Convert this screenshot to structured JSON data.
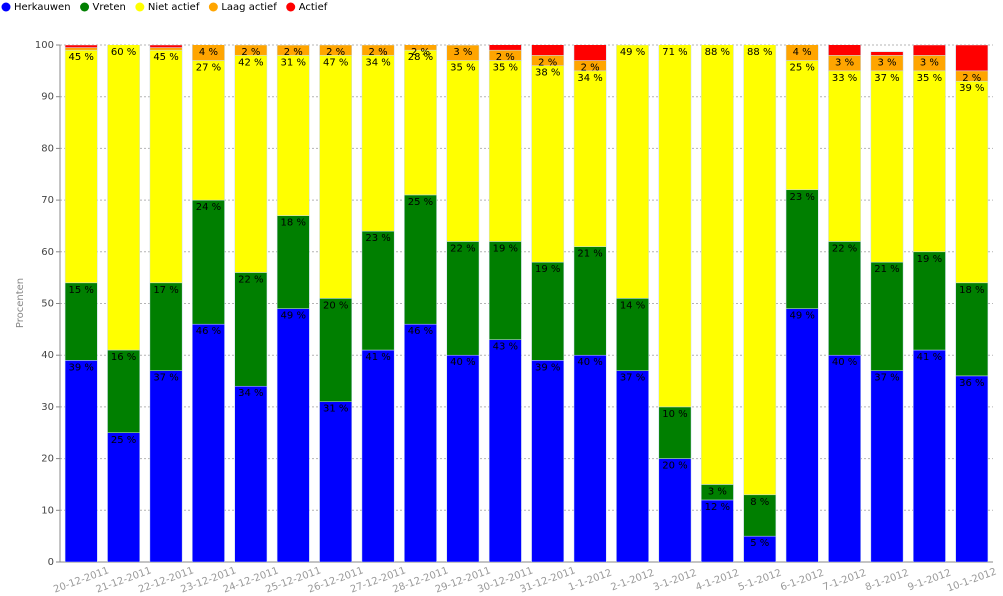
{
  "chart_data": {
    "type": "stacked-bar",
    "y_label": "Procenten",
    "categories": [
      "20-12-2011",
      "21-12-2011",
      "22-12-2011",
      "23-12-2011",
      "24-12-2011",
      "25-12-2011",
      "26-12-2011",
      "27-12-2011",
      "28-12-2011",
      "29-12-2011",
      "30-12-2011",
      "31-12-2011",
      "1-1-2012",
      "2-1-2012",
      "3-1-2012",
      "4-1-2012",
      "5-1-2012",
      "6-1-2012",
      "7-1-2012",
      "8-1-2012",
      "9-1-2012",
      "10-1-2012"
    ],
    "series": [
      {
        "name": "Herkauwen",
        "color": "#0000ff",
        "values": [
          39,
          25,
          37,
          46,
          34,
          49,
          31,
          41,
          46,
          40,
          43,
          39,
          40,
          37,
          20,
          12,
          5,
          49,
          40,
          37,
          41,
          36
        ],
        "value_labels": [
          "39 %",
          "25 %",
          "37 %",
          "46 %",
          "34 %",
          "49 %",
          "31 %",
          "41 %",
          "46 %",
          "40 %",
          "43 %",
          "39 %",
          "40 %",
          "37 %",
          "20 %",
          "12 %",
          "5 %",
          "49 %",
          "40 %",
          "37 %",
          "41 %",
          "36 %"
        ]
      },
      {
        "name": "Vreten",
        "color": "#007f00",
        "values": [
          15,
          16,
          17,
          24,
          22,
          18,
          20,
          23,
          25,
          22,
          19,
          19,
          21,
          14,
          10,
          3,
          8,
          23,
          22,
          21,
          19,
          18
        ],
        "value_labels": [
          "15 %",
          "16 %",
          "17 %",
          "24 %",
          "22 %",
          "18 %",
          "20 %",
          "23 %",
          "25 %",
          "22 %",
          "19 %",
          "19 %",
          "21 %",
          "14 %",
          "10 %",
          "3 %",
          "8 %",
          "23 %",
          "22 %",
          "21 %",
          "19 %",
          "18 %"
        ]
      },
      {
        "name": "Niet actief",
        "color": "#ffff00",
        "values": [
          45,
          60,
          45,
          27,
          42,
          31,
          47,
          34,
          28,
          35,
          35,
          38,
          34,
          49,
          71,
          88,
          88,
          25,
          33,
          37,
          35,
          39
        ],
        "value_labels": [
          "45 %",
          "60 %",
          "45 %",
          "27 %",
          "42 %",
          "31 %",
          "47 %",
          "34 %",
          "28 %",
          "35 %",
          "35 %",
          "38 %",
          "34 %",
          "49 %",
          "71 %",
          "88 %",
          "88 %",
          "25 %",
          "33 %",
          "37 %",
          "35 %",
          "39 %"
        ]
      },
      {
        "name": "Laag actief",
        "color": "#ffa500",
        "values": [
          0.5,
          0,
          0.5,
          4,
          2,
          2,
          2,
          2,
          2,
          3,
          2,
          2,
          2,
          0,
          0,
          0,
          0,
          4,
          3,
          3,
          3,
          2
        ],
        "value_labels": [
          null,
          null,
          null,
          "4 %",
          "2 %",
          "2 %",
          "2 %",
          "2 %",
          "2 %",
          "3 %",
          "2 %",
          "2 %",
          "2 %",
          null,
          null,
          null,
          null,
          "4 %",
          "3 %",
          "3 %",
          "3 %",
          "2 %"
        ]
      },
      {
        "name": "Actief",
        "color": "#ff0000",
        "values": [
          0.5,
          0,
          0.5,
          0,
          0,
          0.5,
          0,
          0,
          0,
          0.5,
          1.5,
          3.5,
          3.5,
          0,
          0,
          0,
          0,
          0,
          2.5,
          0.7,
          2,
          5
        ],
        "value_labels": [
          null,
          null,
          null,
          null,
          null,
          null,
          null,
          null,
          null,
          null,
          null,
          null,
          null,
          null,
          null,
          null,
          null,
          null,
          null,
          null,
          null,
          null
        ]
      }
    ],
    "ylim": [
      0,
      100
    ],
    "yticks": [
      0,
      10,
      20,
      30,
      40,
      50,
      60,
      70,
      80,
      90,
      100
    ],
    "grid": true,
    "legend": "top-left"
  }
}
